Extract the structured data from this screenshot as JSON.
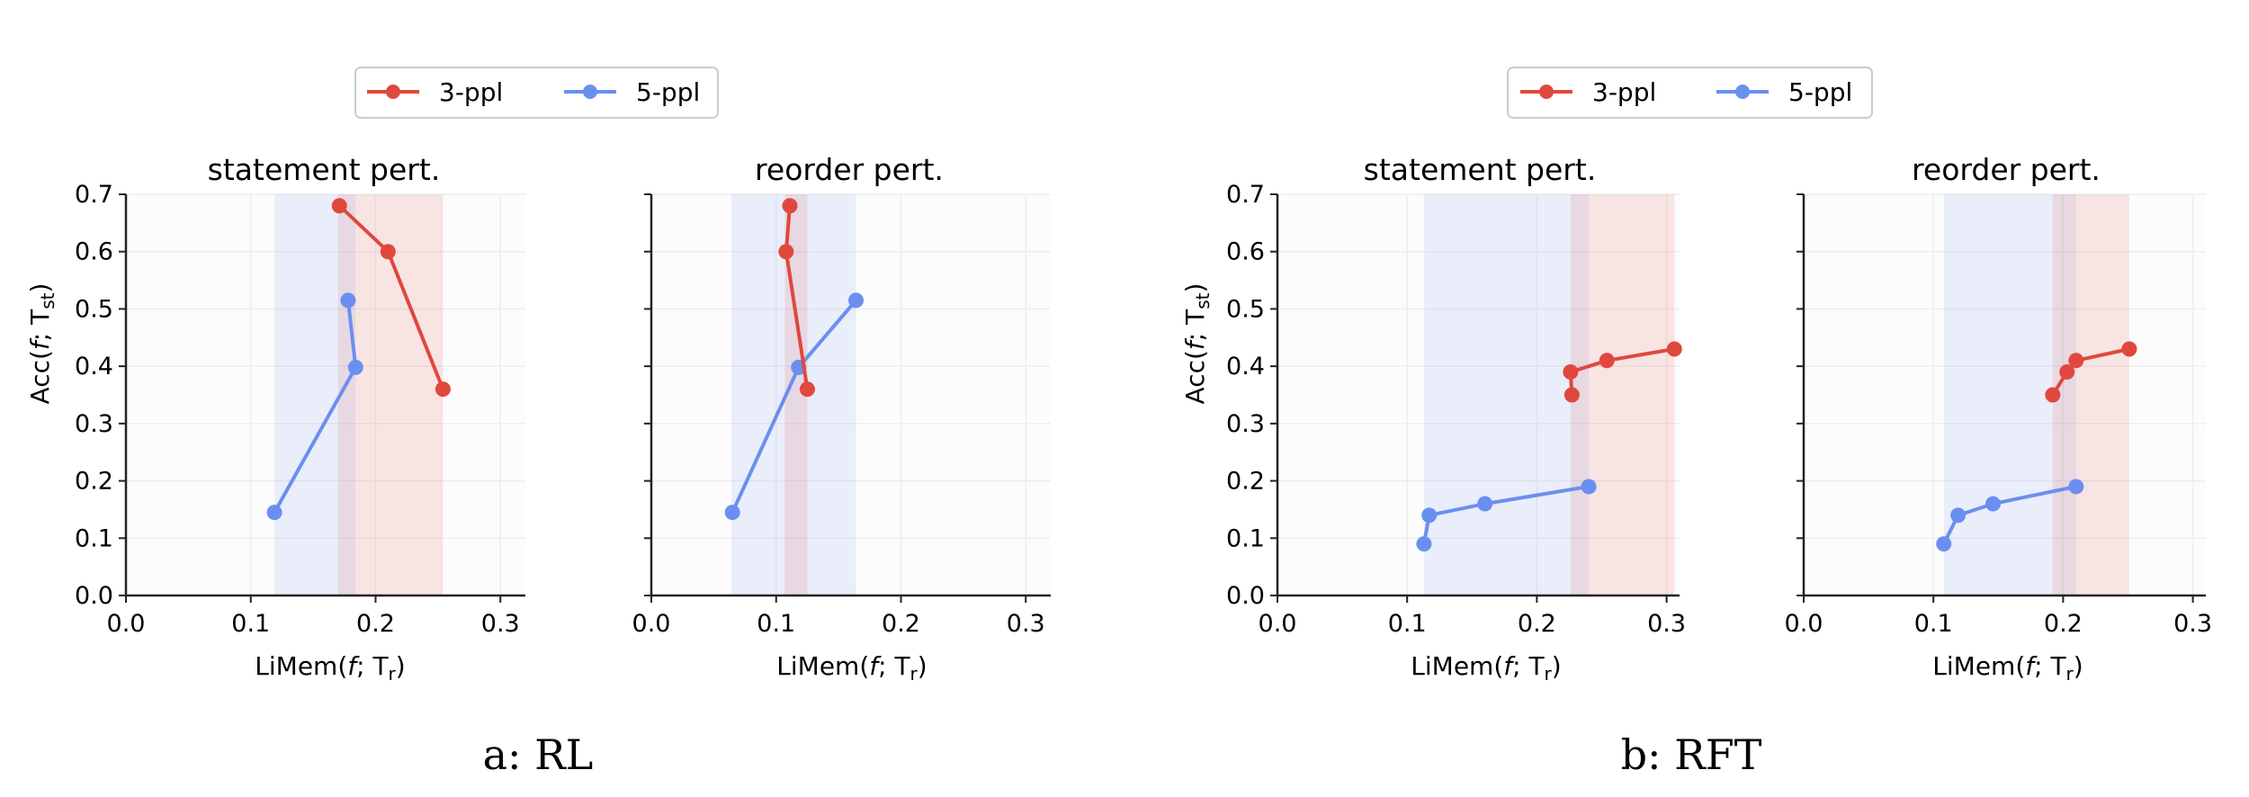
{
  "figure": {
    "captions": [
      "a: RL",
      "b: RFT"
    ],
    "legend": [
      {
        "label": "3-ppl",
        "color": "#e0483d"
      },
      {
        "label": "5-ppl",
        "color": "#6b8ff0"
      }
    ],
    "axis_labels": {
      "ylabel_main": "Acc(",
      "ylabel_f": "f",
      "ylabel_sep": "; T",
      "ylabel_sub": "st",
      "ylabel_end": ")",
      "xlabel_main": "LiMem(",
      "xlabel_f": "f",
      "xlabel_sep": "; T",
      "xlabel_sub": "r",
      "xlabel_end": ")"
    }
  },
  "chart_data": [
    {
      "type": "line",
      "group": "a: RL",
      "title": "statement pert.",
      "xlim": [
        0.0,
        0.32
      ],
      "ylim": [
        0.0,
        0.7
      ],
      "xticks": [
        "0.0",
        "0.1",
        "0.2",
        "0.3"
      ],
      "yticks": [
        "0.0",
        "0.1",
        "0.2",
        "0.3",
        "0.4",
        "0.5",
        "0.6",
        "0.7"
      ],
      "show_yticklabels": true,
      "grid": true,
      "series": [
        {
          "name": "3-ppl",
          "color": "#e0483d",
          "span": [
            0.17,
            0.254
          ],
          "points": [
            [
              0.171,
              0.68
            ],
            [
              0.21,
              0.6
            ],
            [
              0.254,
              0.36
            ]
          ]
        },
        {
          "name": "5-ppl",
          "color": "#6b8ff0",
          "span": [
            0.119,
            0.184
          ],
          "points": [
            [
              0.119,
              0.145
            ],
            [
              0.184,
              0.398
            ],
            [
              0.178,
              0.515
            ]
          ]
        }
      ]
    },
    {
      "type": "line",
      "group": "a: RL",
      "title": "reorder pert.",
      "xlim": [
        0.0,
        0.32
      ],
      "ylim": [
        0.0,
        0.7
      ],
      "xticks": [
        "0.0",
        "0.1",
        "0.2",
        "0.3"
      ],
      "yticks": [
        "0.0",
        "0.1",
        "0.2",
        "0.3",
        "0.4",
        "0.5",
        "0.6",
        "0.7"
      ],
      "show_yticklabels": false,
      "grid": true,
      "series": [
        {
          "name": "3-ppl",
          "color": "#e0483d",
          "span": [
            0.107,
            0.125
          ],
          "points": [
            [
              0.111,
              0.68
            ],
            [
              0.108,
              0.6
            ],
            [
              0.125,
              0.36
            ]
          ]
        },
        {
          "name": "5-ppl",
          "color": "#6b8ff0",
          "span": [
            0.064,
            0.164
          ],
          "points": [
            [
              0.065,
              0.145
            ],
            [
              0.118,
              0.398
            ],
            [
              0.164,
              0.515
            ]
          ]
        }
      ]
    },
    {
      "type": "line",
      "group": "b: RFT",
      "title": "statement pert.",
      "xlim": [
        0.0,
        0.31
      ],
      "ylim": [
        0.0,
        0.7
      ],
      "xticks": [
        "0.0",
        "0.1",
        "0.2",
        "0.3"
      ],
      "yticks": [
        "0.0",
        "0.1",
        "0.2",
        "0.3",
        "0.4",
        "0.5",
        "0.6",
        "0.7"
      ],
      "show_yticklabels": true,
      "grid": true,
      "series": [
        {
          "name": "3-ppl",
          "color": "#e0483d",
          "span": [
            0.226,
            0.306
          ],
          "points": [
            [
              0.227,
              0.35
            ],
            [
              0.226,
              0.39
            ],
            [
              0.254,
              0.41
            ],
            [
              0.306,
              0.43
            ]
          ]
        },
        {
          "name": "5-ppl",
          "color": "#6b8ff0",
          "span": [
            0.113,
            0.24
          ],
          "points": [
            [
              0.113,
              0.09
            ],
            [
              0.117,
              0.14
            ],
            [
              0.16,
              0.16
            ],
            [
              0.24,
              0.19
            ]
          ]
        }
      ]
    },
    {
      "type": "line",
      "group": "b: RFT",
      "title": "reorder pert.",
      "xlim": [
        0.0,
        0.31
      ],
      "ylim": [
        0.0,
        0.7
      ],
      "xticks": [
        "0.0",
        "0.1",
        "0.2",
        "0.3"
      ],
      "yticks": [
        "0.0",
        "0.1",
        "0.2",
        "0.3",
        "0.4",
        "0.5",
        "0.6",
        "0.7"
      ],
      "show_yticklabels": false,
      "grid": true,
      "series": [
        {
          "name": "3-ppl",
          "color": "#e0483d",
          "span": [
            0.192,
            0.251
          ],
          "points": [
            [
              0.192,
              0.35
            ],
            [
              0.203,
              0.39
            ],
            [
              0.21,
              0.41
            ],
            [
              0.251,
              0.43
            ]
          ]
        },
        {
          "name": "5-ppl",
          "color": "#6b8ff0",
          "span": [
            0.108,
            0.21
          ],
          "points": [
            [
              0.108,
              0.09
            ],
            [
              0.119,
              0.14
            ],
            [
              0.146,
              0.16
            ],
            [
              0.21,
              0.19
            ]
          ]
        }
      ]
    }
  ]
}
